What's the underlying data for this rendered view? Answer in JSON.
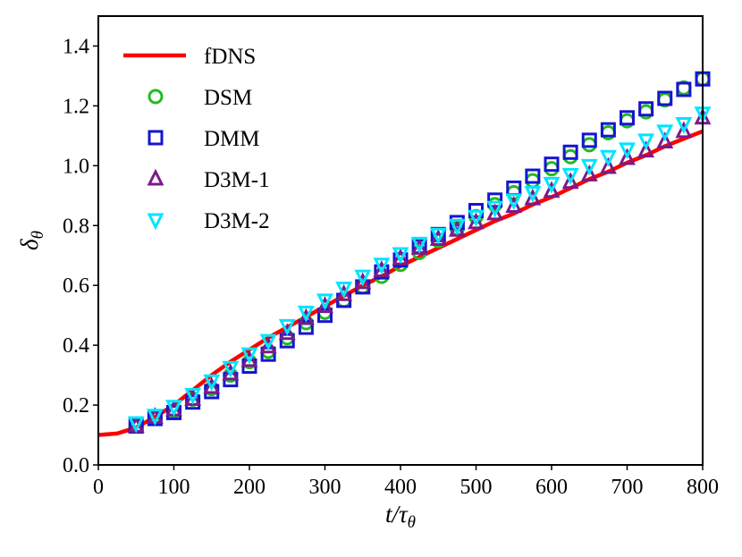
{
  "chart_data": {
    "type": "scatter",
    "xlabel": "t/τθ",
    "ylabel": "δθ",
    "xlim": [
      0,
      800
    ],
    "ylim": [
      0.0,
      1.5
    ],
    "xticks": [
      "0",
      "100",
      "200",
      "300",
      "400",
      "500",
      "600",
      "700",
      "800"
    ],
    "yticks": [
      "0.0",
      "0.2",
      "0.4",
      "0.6",
      "0.8",
      "1.0",
      "1.2",
      "1.4"
    ],
    "grid": false,
    "legend_position": "top-left",
    "series": [
      {
        "name": "fDNS",
        "kind": "line",
        "color": "#ff0000",
        "x": [
          0,
          25,
          50,
          75,
          100,
          125,
          150,
          175,
          200,
          225,
          250,
          275,
          300,
          325,
          350,
          375,
          400,
          425,
          450,
          475,
          500,
          525,
          550,
          575,
          600,
          625,
          650,
          675,
          700,
          725,
          750,
          775,
          800
        ],
        "y": [
          0.1,
          0.105,
          0.125,
          0.16,
          0.2,
          0.25,
          0.3,
          0.345,
          0.385,
          0.425,
          0.46,
          0.495,
          0.53,
          0.565,
          0.6,
          0.63,
          0.665,
          0.695,
          0.725,
          0.755,
          0.785,
          0.815,
          0.84,
          0.87,
          0.895,
          0.925,
          0.955,
          0.98,
          1.01,
          1.035,
          1.065,
          1.09,
          1.115
        ]
      },
      {
        "name": "DSM",
        "kind": "marker",
        "marker": "circle",
        "color": "#22bb22",
        "x": [
          50,
          75,
          100,
          125,
          150,
          175,
          200,
          225,
          250,
          275,
          300,
          325,
          350,
          375,
          400,
          425,
          450,
          475,
          500,
          525,
          550,
          575,
          600,
          625,
          650,
          675,
          700,
          725,
          750,
          775,
          800
        ],
        "y": [
          0.13,
          0.16,
          0.18,
          0.22,
          0.255,
          0.3,
          0.345,
          0.38,
          0.425,
          0.475,
          0.51,
          0.55,
          0.595,
          0.63,
          0.67,
          0.71,
          0.75,
          0.79,
          0.83,
          0.87,
          0.91,
          0.95,
          0.99,
          1.03,
          1.07,
          1.11,
          1.15,
          1.18,
          1.22,
          1.26,
          1.29
        ]
      },
      {
        "name": "DMM",
        "kind": "marker",
        "marker": "square",
        "color": "#1515d0",
        "x": [
          50,
          75,
          100,
          125,
          150,
          175,
          200,
          225,
          250,
          275,
          300,
          325,
          350,
          375,
          400,
          425,
          450,
          475,
          500,
          525,
          550,
          575,
          600,
          625,
          650,
          675,
          700,
          725,
          750,
          775,
          800
        ],
        "y": [
          0.13,
          0.155,
          0.175,
          0.21,
          0.245,
          0.285,
          0.33,
          0.37,
          0.415,
          0.46,
          0.5,
          0.55,
          0.595,
          0.645,
          0.685,
          0.73,
          0.77,
          0.81,
          0.85,
          0.885,
          0.925,
          0.965,
          1.005,
          1.045,
          1.085,
          1.12,
          1.16,
          1.19,
          1.225,
          1.255,
          1.29
        ]
      },
      {
        "name": "D3M-1",
        "kind": "marker",
        "marker": "triangle-up",
        "color": "#7a1a8a",
        "x": [
          50,
          75,
          100,
          125,
          150,
          175,
          200,
          225,
          250,
          275,
          300,
          325,
          350,
          375,
          400,
          425,
          450,
          475,
          500,
          525,
          550,
          575,
          600,
          625,
          650,
          675,
          700,
          725,
          750,
          775,
          800
        ],
        "y": [
          0.13,
          0.16,
          0.185,
          0.22,
          0.26,
          0.305,
          0.35,
          0.395,
          0.44,
          0.49,
          0.53,
          0.57,
          0.61,
          0.65,
          0.69,
          0.725,
          0.755,
          0.785,
          0.81,
          0.84,
          0.865,
          0.89,
          0.915,
          0.945,
          0.97,
          0.995,
          1.025,
          1.05,
          1.08,
          1.115,
          1.16
        ]
      },
      {
        "name": "D3M-2",
        "kind": "marker",
        "marker": "triangle-down",
        "color": "#00e5ff",
        "x": [
          50,
          75,
          100,
          125,
          150,
          175,
          200,
          225,
          250,
          275,
          300,
          325,
          350,
          375,
          400,
          425,
          450,
          475,
          500,
          525,
          550,
          575,
          600,
          625,
          650,
          675,
          700,
          725,
          750,
          775,
          800
        ],
        "y": [
          0.14,
          0.165,
          0.195,
          0.235,
          0.28,
          0.325,
          0.37,
          0.415,
          0.465,
          0.51,
          0.55,
          0.59,
          0.63,
          0.67,
          0.705,
          0.74,
          0.77,
          0.8,
          0.83,
          0.86,
          0.885,
          0.91,
          0.94,
          0.97,
          1.0,
          1.03,
          1.055,
          1.085,
          1.115,
          1.14,
          1.175
        ]
      }
    ]
  }
}
